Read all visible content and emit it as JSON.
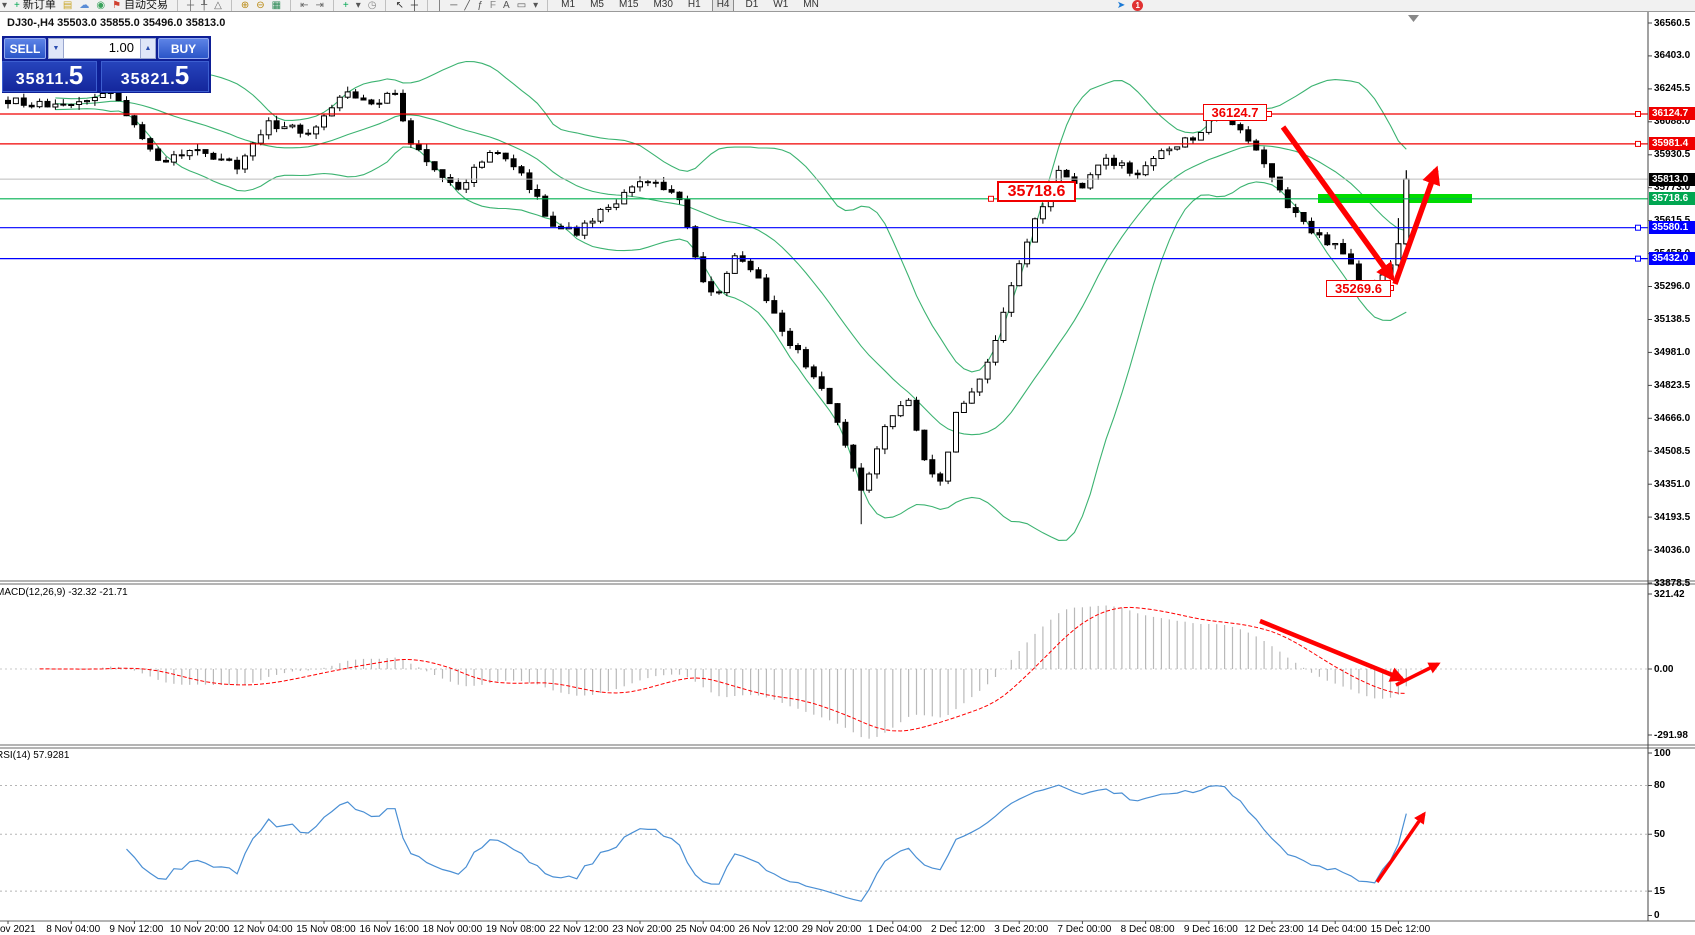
{
  "app": {
    "toolbar": {
      "left_items": [
        {
          "type": "icon",
          "name": "charts-dropdown-icon",
          "glyph": "▾",
          "color": "#555"
        },
        {
          "type": "button",
          "name": "new-order-button",
          "glyph": "+",
          "glyph_color": "#00a651",
          "label": "新订单"
        },
        {
          "type": "icon",
          "name": "market-watch-icon",
          "glyph": "▤",
          "color": "#c8a420"
        },
        {
          "type": "icon",
          "name": "cloud-icon",
          "glyph": "☁",
          "color": "#5b8dd6"
        },
        {
          "type": "icon",
          "name": "signals-icon",
          "glyph": "◉",
          "color": "#3aa35c"
        },
        {
          "type": "button",
          "name": "autotrading-button",
          "glyph": "⚑",
          "glyph_color": "#d04030",
          "label": "自动交易"
        },
        {
          "type": "sep"
        },
        {
          "type": "icon",
          "name": "crosshair-price-icon",
          "glyph": "┼",
          "color": "#666"
        },
        {
          "type": "icon",
          "name": "crosshair-time-icon",
          "glyph": "╀",
          "color": "#666"
        },
        {
          "type": "icon",
          "name": "zigzag-icon",
          "glyph": "△",
          "color": "#666"
        },
        {
          "type": "sep"
        },
        {
          "type": "icon",
          "name": "zoom-in-icon",
          "glyph": "⊕",
          "color": "#b8860b"
        },
        {
          "type": "icon",
          "name": "zoom-out-icon",
          "glyph": "⊖",
          "color": "#b8860b"
        },
        {
          "type": "icon",
          "name": "tile-windows-icon",
          "glyph": "▦",
          "color": "#2e8b57"
        },
        {
          "type": "sep"
        },
        {
          "type": "icon",
          "name": "step-back-icon",
          "glyph": "⇤",
          "color": "#666"
        },
        {
          "type": "icon",
          "name": "step-forward-icon",
          "glyph": "⇥",
          "color": "#666"
        },
        {
          "type": "sep"
        },
        {
          "type": "icon",
          "name": "new-chart-icon",
          "glyph": "+",
          "color": "#00a651"
        },
        {
          "type": "icon",
          "name": "chart-list-dropdown-icon",
          "glyph": "▾",
          "color": "#555"
        },
        {
          "type": "icon",
          "name": "autoscroll-icon",
          "glyph": "◷",
          "color": "#888"
        },
        {
          "type": "sep"
        },
        {
          "type": "icon",
          "name": "cursor-icon",
          "glyph": "↖",
          "color": "#333"
        },
        {
          "type": "icon",
          "name": "crosshair-icon",
          "glyph": "┼",
          "color": "#333"
        },
        {
          "type": "sep"
        },
        {
          "type": "icon",
          "name": "vline-icon",
          "glyph": "│",
          "color": "#555"
        },
        {
          "type": "icon",
          "name": "hline-icon",
          "glyph": "─",
          "color": "#555"
        },
        {
          "type": "icon",
          "name": "trendline-icon",
          "glyph": "╱",
          "color": "#555"
        },
        {
          "type": "icon",
          "name": "equidistant-channel-icon",
          "glyph": "ƒ",
          "color": "#555"
        },
        {
          "type": "icon",
          "name": "fibo-icon",
          "glyph": "F",
          "color": "#888"
        },
        {
          "type": "icon",
          "name": "text-icon",
          "glyph": "A",
          "color": "#555"
        },
        {
          "type": "icon",
          "name": "text-label-icon",
          "glyph": "▭",
          "color": "#555"
        },
        {
          "type": "icon",
          "name": "arrows-dropdown-icon",
          "glyph": "▾",
          "color": "#555"
        },
        {
          "type": "sep"
        }
      ],
      "timeframes": [
        "M1",
        "M5",
        "M15",
        "M30",
        "H1",
        "H4",
        "D1",
        "W1",
        "MN"
      ],
      "active_timeframe": "H4",
      "right_items": [
        {
          "type": "icon",
          "name": "community-icon",
          "glyph": "➤",
          "color": "#1c7ad6"
        },
        {
          "type": "badge",
          "name": "notification-badge",
          "label": "1",
          "color": "#e03131"
        }
      ]
    }
  },
  "chart": {
    "title": "DJ30-,H4  35503.0 35855.0 35496.0 35813.0",
    "price_axis": [
      "36560.5",
      "36403.0",
      "36245.5",
      "36088.0",
      "35930.5",
      "35773.0",
      "35615.5",
      "35458.0",
      "35296.0",
      "35138.5",
      "34981.0",
      "34823.5",
      "34666.0",
      "34508.5",
      "34351.0",
      "34193.5",
      "34036.0",
      "33878.5"
    ],
    "time_axis": [
      "5 Nov 2021",
      "8 Nov 04:00",
      "9 Nov 12:00",
      "10 Nov 20:00",
      "12 Nov 04:00",
      "15 Nov 08:00",
      "16 Nov 16:00",
      "18 Nov 00:00",
      "19 Nov 08:00",
      "22 Nov 12:00",
      "23 Nov 20:00",
      "25 Nov 04:00",
      "26 Nov 12:00",
      "29 Nov 20:00",
      "1 Dec 04:00",
      "2 Dec 12:00",
      "3 Dec 20:00",
      "7 Dec 00:00",
      "8 Dec 08:00",
      "9 Dec 16:00",
      "12 Dec 23:00",
      "14 Dec 04:00",
      "15 Dec 12:00"
    ],
    "badges": [
      {
        "text": "36124.7",
        "bg": "#f00000",
        "price": 36124.7
      },
      {
        "text": "35981.4",
        "bg": "#f00000",
        "price": 35981.4
      },
      {
        "text": "35813.0",
        "bg": "#000000",
        "price": 35813.0
      },
      {
        "text": "35718.6",
        "bg": "#00a651",
        "price": 35718.6
      },
      {
        "text": "35580.1",
        "bg": "#0000ff",
        "price": 35580.1
      },
      {
        "text": "35432.0",
        "bg": "#0000ff",
        "price": 35432.0
      }
    ],
    "levels": [
      {
        "price": 36124.7,
        "color": "#f00000"
      },
      {
        "price": 35981.4,
        "color": "#f00000"
      },
      {
        "price": 35813.0,
        "color": "#bcbcbc"
      },
      {
        "price": 35718.6,
        "color": "#00b050"
      },
      {
        "price": 35580.1,
        "color": "#0000ff"
      },
      {
        "price": 35432.0,
        "color": "#0000ff"
      }
    ],
    "annotations": {
      "high_label": {
        "text": "36124.7"
      },
      "mid_label": {
        "text": "35718.6"
      },
      "low_label": {
        "text": "35269.6"
      },
      "zone_color": "#00dc00",
      "arrow_color": "#ff0000"
    }
  },
  "one_click": {
    "sell_label": "SELL",
    "buy_label": "BUY",
    "volume": "1.00",
    "sell_price_main": "35811",
    "sell_price_dot": ".",
    "sell_price_big": "5",
    "buy_price_main": "35821",
    "buy_price_dot": ".",
    "buy_price_big": "5"
  },
  "macd_panel": {
    "label": "MACD(12,26,9) -32.32 -21.71",
    "axis": [
      "321.42",
      "0.00",
      "-291.98"
    ]
  },
  "rsi_panel": {
    "label": "RSI(14) 57.9281",
    "axis": [
      "100",
      "80",
      "50",
      "15",
      "0"
    ],
    "level_values": [
      80,
      50,
      15
    ]
  },
  "chart_data": {
    "type": "candlestick",
    "symbol": "DJ30-",
    "period": "H4",
    "title": "DJ30-,H4",
    "last_candle_ohlc": {
      "open": 35503.0,
      "high": 35855.0,
      "low": 35496.0,
      "close": 35813.0
    },
    "bid": 35811.5,
    "ask": 35821.5,
    "price_axis_range": {
      "top": 36560.5,
      "bottom": 33878.5
    },
    "macd_values": {
      "macd": -32.32,
      "signal": -21.71
    },
    "macd_axis_range": {
      "top": 321.42,
      "zero": 0.0,
      "bottom": -291.98
    },
    "rsi_value": 57.9281,
    "rsi_levels": [
      80,
      50,
      15
    ],
    "first_visible_time": "5 Nov 2021",
    "last_visible_time": "15 Dec 12:00",
    "key_levels": [
      36124.7,
      35981.4,
      35813.0,
      35718.6,
      35580.1,
      35432.0
    ],
    "swing_points": {
      "high": 36124.7,
      "support_zone": 35718.6,
      "low": 35269.6
    },
    "num_candles": 178,
    "close_waypoints": [
      [
        0,
        36190
      ],
      [
        7,
        36150
      ],
      [
        13,
        36240
      ],
      [
        19,
        35890
      ],
      [
        24,
        35950
      ],
      [
        29,
        35870
      ],
      [
        33,
        36080
      ],
      [
        38,
        36040
      ],
      [
        43,
        36230
      ],
      [
        46,
        36160
      ],
      [
        49,
        36230
      ],
      [
        51,
        35990
      ],
      [
        54,
        35870
      ],
      [
        57,
        35760
      ],
      [
        61,
        35950
      ],
      [
        65,
        35840
      ],
      [
        69,
        35590
      ],
      [
        72,
        35560
      ],
      [
        76,
        35680
      ],
      [
        81,
        35810
      ],
      [
        85,
        35730
      ],
      [
        88,
        35310
      ],
      [
        90,
        35260
      ],
      [
        92,
        35450
      ],
      [
        95,
        35330
      ],
      [
        98,
        35080
      ],
      [
        102,
        34880
      ],
      [
        105,
        34650
      ],
      [
        108,
        34310
      ],
      [
        111,
        34620
      ],
      [
        114,
        34760
      ],
      [
        116,
        34480
      ],
      [
        118,
        34350
      ],
      [
        120,
        34680
      ],
      [
        124,
        34920
      ],
      [
        127,
        35310
      ],
      [
        130,
        35620
      ],
      [
        133,
        35840
      ],
      [
        136,
        35770
      ],
      [
        139,
        35910
      ],
      [
        143,
        35840
      ],
      [
        146,
        35940
      ],
      [
        150,
        36010
      ],
      [
        153,
        36130
      ],
      [
        156,
        36040
      ],
      [
        159,
        35890
      ],
      [
        162,
        35690
      ],
      [
        165,
        35560
      ],
      [
        169,
        35470
      ],
      [
        171,
        35330
      ],
      [
        173,
        35280
      ],
      [
        175,
        35400
      ],
      [
        177,
        35813
      ]
    ],
    "forced_lows": {
      "108": 34160,
      "173": 35269.6
    },
    "indicators": {
      "bollinger_period": 20,
      "bollinger_dev": 2,
      "macd": [
        12,
        26,
        9
      ],
      "rsi_period": 14
    }
  }
}
